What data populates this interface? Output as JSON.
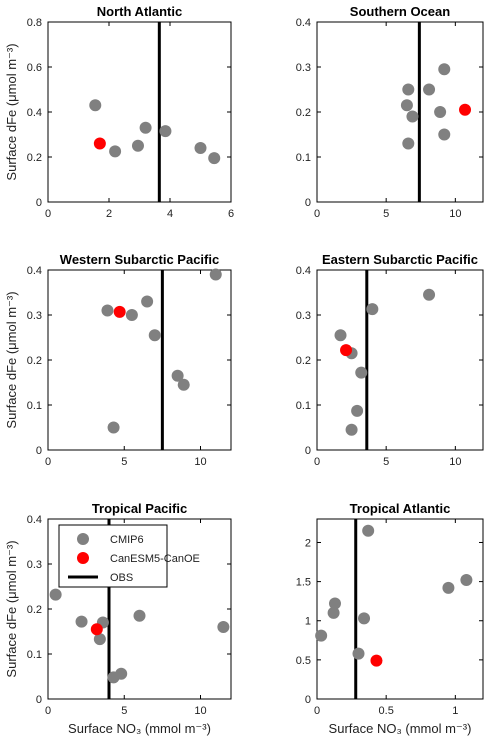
{
  "legend": {
    "cmip6": "CMIP6",
    "canesm": "CanESM5-CanOE",
    "obs": "OBS"
  },
  "colors": {
    "cmip6": "#808080",
    "canesm": "#ff0000",
    "obs": "#000000"
  },
  "chart_data": [
    {
      "type": "scatter",
      "title": "North Atlantic",
      "xlabel": "",
      "ylabel": "Surface dFe (μmol m⁻³)",
      "xlim": [
        0,
        6
      ],
      "ylim": [
        0,
        0.8
      ],
      "xticks": [
        "0",
        "2",
        "4",
        "6"
      ],
      "xtick_values": [
        0,
        2,
        4,
        6
      ],
      "yticks": [
        "0",
        "0.2",
        "0.4",
        "0.6",
        "0.8"
      ],
      "ytick_values": [
        0,
        0.2,
        0.4,
        0.6,
        0.8
      ],
      "obs_x": 3.65,
      "cmip6": [
        [
          1.55,
          0.43
        ],
        [
          2.2,
          0.225
        ],
        [
          2.95,
          0.25
        ],
        [
          3.2,
          0.33
        ],
        [
          3.85,
          0.315
        ],
        [
          5.0,
          0.24
        ],
        [
          5.45,
          0.195
        ]
      ],
      "canesm": [
        [
          1.7,
          0.26
        ]
      ]
    },
    {
      "type": "scatter",
      "title": "Southern Ocean",
      "xlabel": "",
      "ylabel": "",
      "xlim": [
        0,
        12
      ],
      "ylim": [
        0,
        0.4
      ],
      "xticks": [
        "0",
        "5",
        "10"
      ],
      "xtick_values": [
        0,
        5,
        10
      ],
      "yticks": [
        "0",
        "0.1",
        "0.2",
        "0.3",
        "0.4"
      ],
      "ytick_values": [
        0,
        0.1,
        0.2,
        0.3,
        0.4
      ],
      "obs_x": 7.4,
      "cmip6": [
        [
          6.6,
          0.25
        ],
        [
          6.5,
          0.215
        ],
        [
          6.9,
          0.19
        ],
        [
          6.6,
          0.13
        ],
        [
          8.1,
          0.25
        ],
        [
          8.9,
          0.2
        ],
        [
          9.2,
          0.295
        ],
        [
          9.2,
          0.15
        ]
      ],
      "canesm": [
        [
          10.7,
          0.205
        ]
      ]
    },
    {
      "type": "scatter",
      "title": "Western Subarctic Pacific",
      "xlabel": "",
      "ylabel": "Surface dFe (μmol m⁻³)",
      "xlim": [
        0,
        12
      ],
      "ylim": [
        0,
        0.4
      ],
      "xticks": [
        "0",
        "5",
        "10"
      ],
      "xtick_values": [
        0,
        5,
        10
      ],
      "yticks": [
        "0",
        "0.1",
        "0.2",
        "0.3",
        "0.4"
      ],
      "ytick_values": [
        0,
        0.1,
        0.2,
        0.3,
        0.4
      ],
      "obs_x": 7.5,
      "cmip6": [
        [
          3.9,
          0.31
        ],
        [
          5.5,
          0.3
        ],
        [
          6.5,
          0.33
        ],
        [
          7.0,
          0.255
        ],
        [
          8.5,
          0.165
        ],
        [
          8.9,
          0.145
        ],
        [
          11.0,
          0.39
        ],
        [
          4.3,
          0.05
        ]
      ],
      "canesm": [
        [
          4.7,
          0.307
        ]
      ]
    },
    {
      "type": "scatter",
      "title": "Eastern Subarctic Pacific",
      "xlabel": "",
      "ylabel": "",
      "xlim": [
        0,
        12
      ],
      "ylim": [
        0,
        0.4
      ],
      "xticks": [
        "0",
        "5",
        "10"
      ],
      "xtick_values": [
        0,
        5,
        10
      ],
      "yticks": [
        "0",
        "0.1",
        "0.2",
        "0.3",
        "0.4"
      ],
      "ytick_values": [
        0,
        0.1,
        0.2,
        0.3,
        0.4
      ],
      "obs_x": 3.6,
      "cmip6": [
        [
          1.7,
          0.255
        ],
        [
          2.5,
          0.215
        ],
        [
          3.2,
          0.172
        ],
        [
          4.0,
          0.313
        ],
        [
          8.1,
          0.345
        ],
        [
          2.9,
          0.087
        ],
        [
          2.5,
          0.045
        ]
      ],
      "canesm": [
        [
          2.1,
          0.222
        ]
      ]
    },
    {
      "type": "scatter",
      "title": "Tropical Pacific",
      "xlabel": "Surface NO₃ (mmol m⁻³)",
      "ylabel": "Surface dFe (μmol m⁻³)",
      "xlim": [
        0,
        12
      ],
      "ylim": [
        0,
        0.4
      ],
      "xticks": [
        "0",
        "5",
        "10"
      ],
      "xtick_values": [
        0,
        5,
        10
      ],
      "yticks": [
        "0",
        "0.1",
        "0.2",
        "0.3",
        "0.4"
      ],
      "ytick_values": [
        0,
        0.1,
        0.2,
        0.3,
        0.4
      ],
      "obs_x": 4.0,
      "cmip6": [
        [
          0.5,
          0.232
        ],
        [
          2.2,
          0.172
        ],
        [
          3.6,
          0.17
        ],
        [
          3.4,
          0.133
        ],
        [
          6.0,
          0.185
        ],
        [
          11.5,
          0.16
        ],
        [
          4.3,
          0.048
        ],
        [
          4.8,
          0.056
        ]
      ],
      "canesm": [
        [
          3.2,
          0.155
        ]
      ]
    },
    {
      "type": "scatter",
      "title": "Tropical Atlantic",
      "xlabel": "Surface NO₃ (mmol m⁻³)",
      "ylabel": "",
      "xlim": [
        0,
        1.2
      ],
      "ylim": [
        0,
        2.3
      ],
      "xticks": [
        "0",
        "0.5",
        "1"
      ],
      "xtick_values": [
        0,
        0.5,
        1
      ],
      "yticks": [
        "0",
        "0.5",
        "1",
        "1.5",
        "2"
      ],
      "ytick_values": [
        0,
        0.5,
        1,
        1.5,
        2
      ],
      "obs_x": 0.28,
      "cmip6": [
        [
          0.03,
          0.81
        ],
        [
          0.13,
          1.22
        ],
        [
          0.12,
          1.1
        ],
        [
          0.3,
          0.58
        ],
        [
          0.34,
          1.03
        ],
        [
          0.37,
          2.15
        ],
        [
          0.95,
          1.42
        ],
        [
          1.08,
          1.52
        ]
      ],
      "canesm": [
        [
          0.43,
          0.49
        ]
      ]
    }
  ]
}
